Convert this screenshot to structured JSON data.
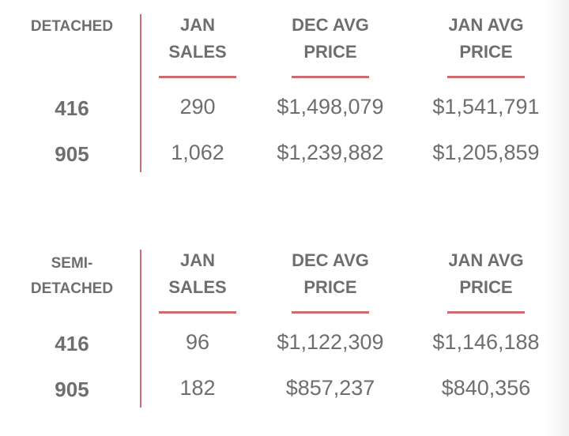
{
  "accent_color": "#cf6b6e",
  "text_color": "#6e6e6e",
  "columns": [
    "JAN SALES",
    "DEC AVG PRICE",
    "JAN AVG PRICE"
  ],
  "tables": [
    {
      "category": "DETACHED",
      "headers": [
        [
          "JAN",
          "SALES"
        ],
        [
          "DEC AVG",
          "PRICE"
        ],
        [
          "JAN AVG",
          "PRICE"
        ]
      ],
      "rows": [
        {
          "label": "416",
          "values": [
            "290",
            "$1,498,079",
            "$1,541,791"
          ]
        },
        {
          "label": "905",
          "values": [
            "1,062",
            "$1,239,882",
            "$1,205,859"
          ]
        }
      ]
    },
    {
      "category": "SEMI-\nDETACHED",
      "category_lines": [
        "SEMI-",
        "DETACHED"
      ],
      "headers": [
        [
          "JAN",
          "SALES"
        ],
        [
          "DEC AVG",
          "PRICE"
        ],
        [
          "JAN AVG",
          "PRICE"
        ]
      ],
      "rows": [
        {
          "label": "416",
          "values": [
            "96",
            "$1,122,309",
            "$1,146,188"
          ]
        },
        {
          "label": "905",
          "values": [
            "182",
            "$857,237",
            "$840,356"
          ]
        }
      ]
    }
  ]
}
